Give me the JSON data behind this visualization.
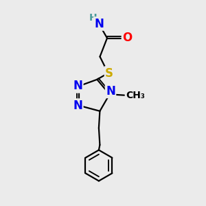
{
  "bg_color": "#ebebeb",
  "atom_colors": {
    "N": "#0000ee",
    "O": "#ff0000",
    "S": "#ccaa00",
    "C": "#000000",
    "H": "#4a9a9a"
  },
  "bond_color": "#000000",
  "bond_width": 1.6,
  "font_size_atoms": 12,
  "font_size_h": 10,
  "font_size_me": 10
}
